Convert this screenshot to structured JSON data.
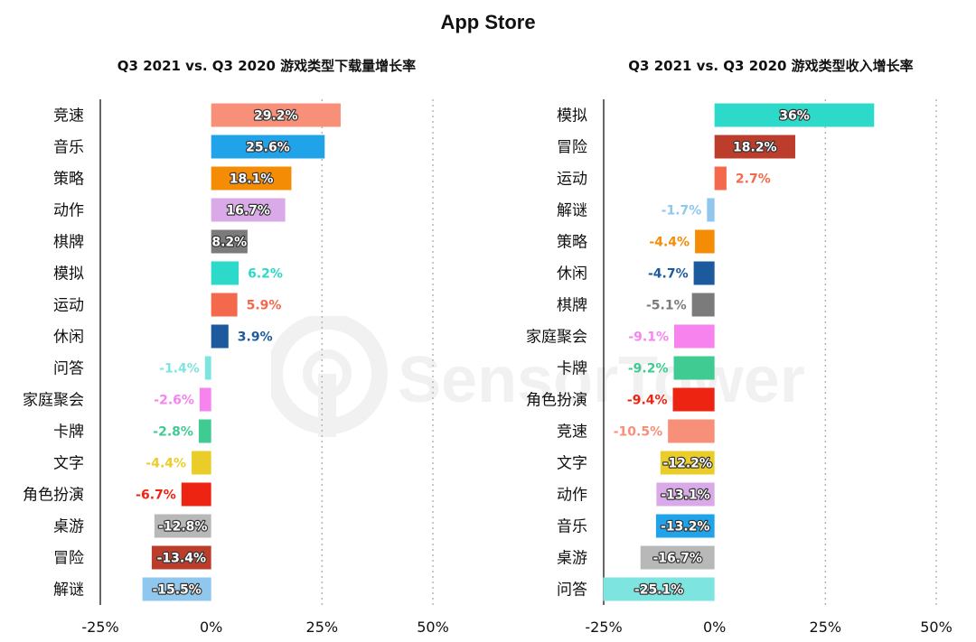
{
  "header": {
    "title": "App Store"
  },
  "watermark": "SensorTower",
  "chart_data": [
    {
      "type": "bar",
      "orientation": "horizontal",
      "title": "Q3 2021 vs. Q3 2020 游戏类型下载量增长率",
      "xlim": [
        -25,
        50
      ],
      "xticks": [
        "-25%",
        "0%",
        "25%",
        "50%"
      ],
      "grid": "dotted vertical",
      "categories": [
        "竞速",
        "音乐",
        "策略",
        "动作",
        "棋牌",
        "模拟",
        "运动",
        "休闲",
        "问答",
        "家庭聚会",
        "卡牌",
        "文字",
        "角色扮演",
        "桌游",
        "冒险",
        "解谜"
      ],
      "values": [
        29.2,
        25.6,
        18.1,
        16.7,
        8.2,
        6.2,
        5.9,
        3.9,
        -1.4,
        -2.6,
        -2.8,
        -4.4,
        -6.7,
        -12.8,
        -13.4,
        -15.5
      ],
      "labels": [
        "29.2%",
        "25.6%",
        "18.1%",
        "16.7%",
        "8.2%",
        "6.2%",
        "5.9%",
        "3.9%",
        "-1.4%",
        "-2.6%",
        "-2.8%",
        "-4.4%",
        "-6.7%",
        "-12.8%",
        "-13.4%",
        "-15.5%"
      ],
      "colors": [
        "#F88F78",
        "#21A3EA",
        "#F48C06",
        "#D9A9E8",
        "#7B7B7B",
        "#2DD9C8",
        "#F4694B",
        "#1D5A9D",
        "#7EE4DF",
        "#F783EE",
        "#3FCB91",
        "#EBCD29",
        "#EE2412",
        "#B8B8B8",
        "#BD3D2D",
        "#8FC7EF"
      ],
      "label_inside": [
        true,
        true,
        true,
        true,
        true,
        false,
        false,
        false,
        false,
        false,
        false,
        false,
        false,
        true,
        true,
        true
      ]
    },
    {
      "type": "bar",
      "orientation": "horizontal",
      "title": "Q3 2021 vs. Q3 2020 游戏类型收入增长率",
      "xlim": [
        -25,
        50
      ],
      "xticks": [
        "-25%",
        "0%",
        "25%",
        "50%"
      ],
      "grid": "dotted vertical",
      "categories": [
        "模拟",
        "冒险",
        "运动",
        "解谜",
        "策略",
        "休闲",
        "棋牌",
        "家庭聚会",
        "卡牌",
        "角色扮演",
        "竞速",
        "文字",
        "动作",
        "音乐",
        "桌游",
        "问答"
      ],
      "values": [
        36,
        18.2,
        2.7,
        -1.7,
        -4.4,
        -4.7,
        -5.1,
        -9.1,
        -9.2,
        -9.4,
        -10.5,
        -12.2,
        -13.1,
        -13.2,
        -16.7,
        -25.1
      ],
      "labels": [
        "36%",
        "18.2%",
        "2.7%",
        "-1.7%",
        "-4.4%",
        "-4.7%",
        "-5.1%",
        "-9.1%",
        "-9.2%",
        "-9.4%",
        "-10.5%",
        "-12.2%",
        "-13.1%",
        "-13.2%",
        "-16.7%",
        "-25.1%"
      ],
      "colors": [
        "#2DD9C8",
        "#BD3D2D",
        "#F4694B",
        "#8FC7EF",
        "#F48C06",
        "#1D5A9D",
        "#7B7B7B",
        "#F783EE",
        "#3FCB91",
        "#EE2412",
        "#F88F78",
        "#EBCD29",
        "#D9A9E8",
        "#21A3EA",
        "#B8B8B8",
        "#7EE4DF"
      ],
      "label_inside": [
        true,
        true,
        false,
        false,
        false,
        false,
        false,
        false,
        false,
        false,
        false,
        true,
        true,
        true,
        true,
        true
      ]
    }
  ]
}
